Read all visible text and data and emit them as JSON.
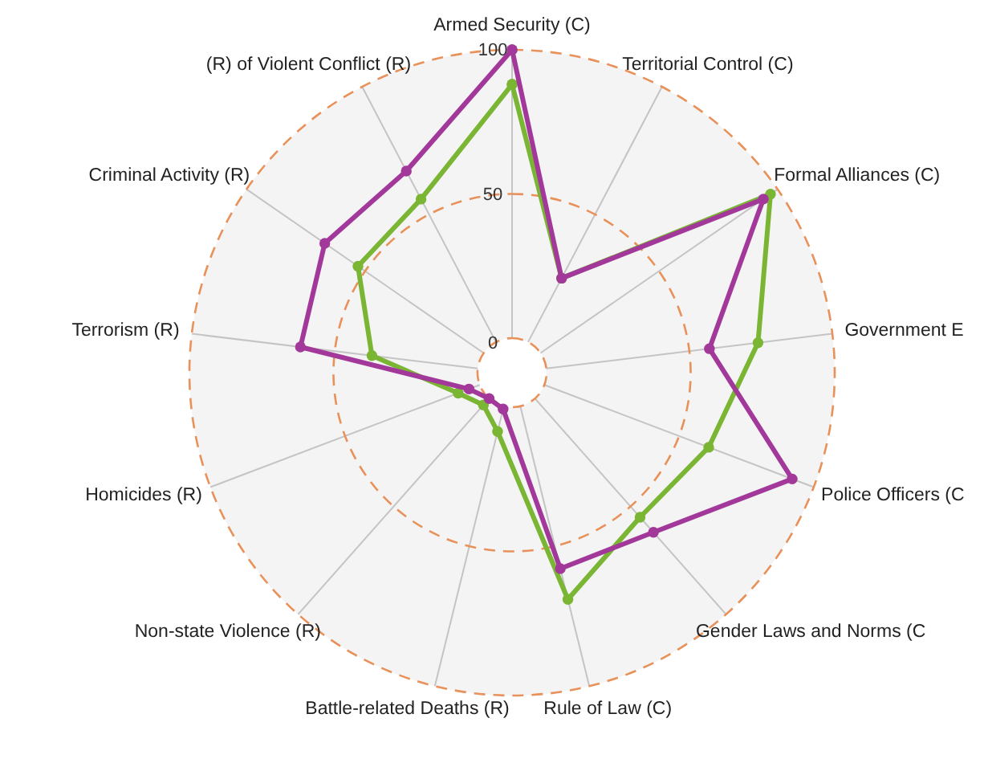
{
  "chart_data": {
    "type": "radar",
    "categories": [
      "Armed Security (C)",
      "Territorial Control (C)",
      "Formal Alliances (C)",
      "Government E",
      "Police Officers (C",
      "Gender Laws and Norms (C",
      "Rule of Law (C)",
      "Battle-related Deaths (R)",
      "Non-state Violence (R)",
      "Homicides (R)",
      "Terrorism (R)",
      "Criminal Activity (R)",
      "(R) of Violent Conflict (R)"
    ],
    "series": [
      {
        "color": "#7ab534",
        "values": [
          88,
          25,
          97,
          74,
          61,
          55,
          69,
          9,
          3,
          8,
          37,
          53,
          56
        ]
      },
      {
        "color": "#a2399a",
        "values": [
          100,
          25,
          94,
          57,
          92,
          62,
          58,
          1,
          0,
          4,
          62,
          67,
          67
        ]
      }
    ],
    "ylim": [
      -12,
      100
    ],
    "yticks": [
      0,
      50,
      100
    ],
    "grid": true,
    "marker": "circle"
  }
}
